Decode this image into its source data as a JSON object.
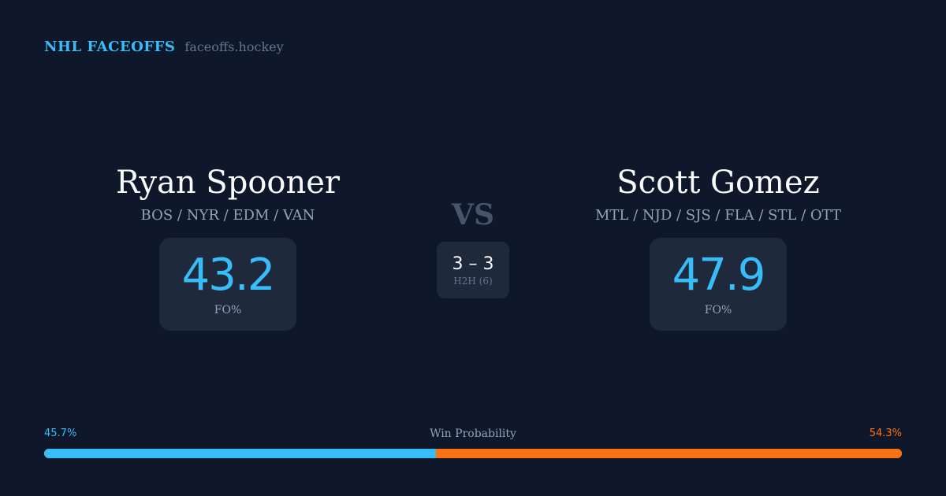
{
  "brand": {
    "title": "NHL FACEOFFS",
    "site": "faceoffs.hockey"
  },
  "left_player": {
    "name": "Ryan Spooner",
    "teams": "BOS / NYR / EDM / VAN",
    "fo_pct": "43.2",
    "fo_label": "FO%"
  },
  "right_player": {
    "name": "Scott Gomez",
    "teams": "MTL / NJD / SJS / FLA / STL / OTT",
    "fo_pct": "47.9",
    "fo_label": "FO%"
  },
  "versus": {
    "label": "VS",
    "h2h_score": "3 – 3",
    "h2h_label": "H2H (6)"
  },
  "win_probability": {
    "label": "Win Probability",
    "left_text": "45.7%",
    "right_text": "54.3%",
    "left_value": 45.7,
    "right_value": 54.3
  },
  "colors": {
    "background": "#0f172a",
    "card": "#1e293b",
    "left_accent": "#38bdf8",
    "right_accent": "#f97316"
  }
}
